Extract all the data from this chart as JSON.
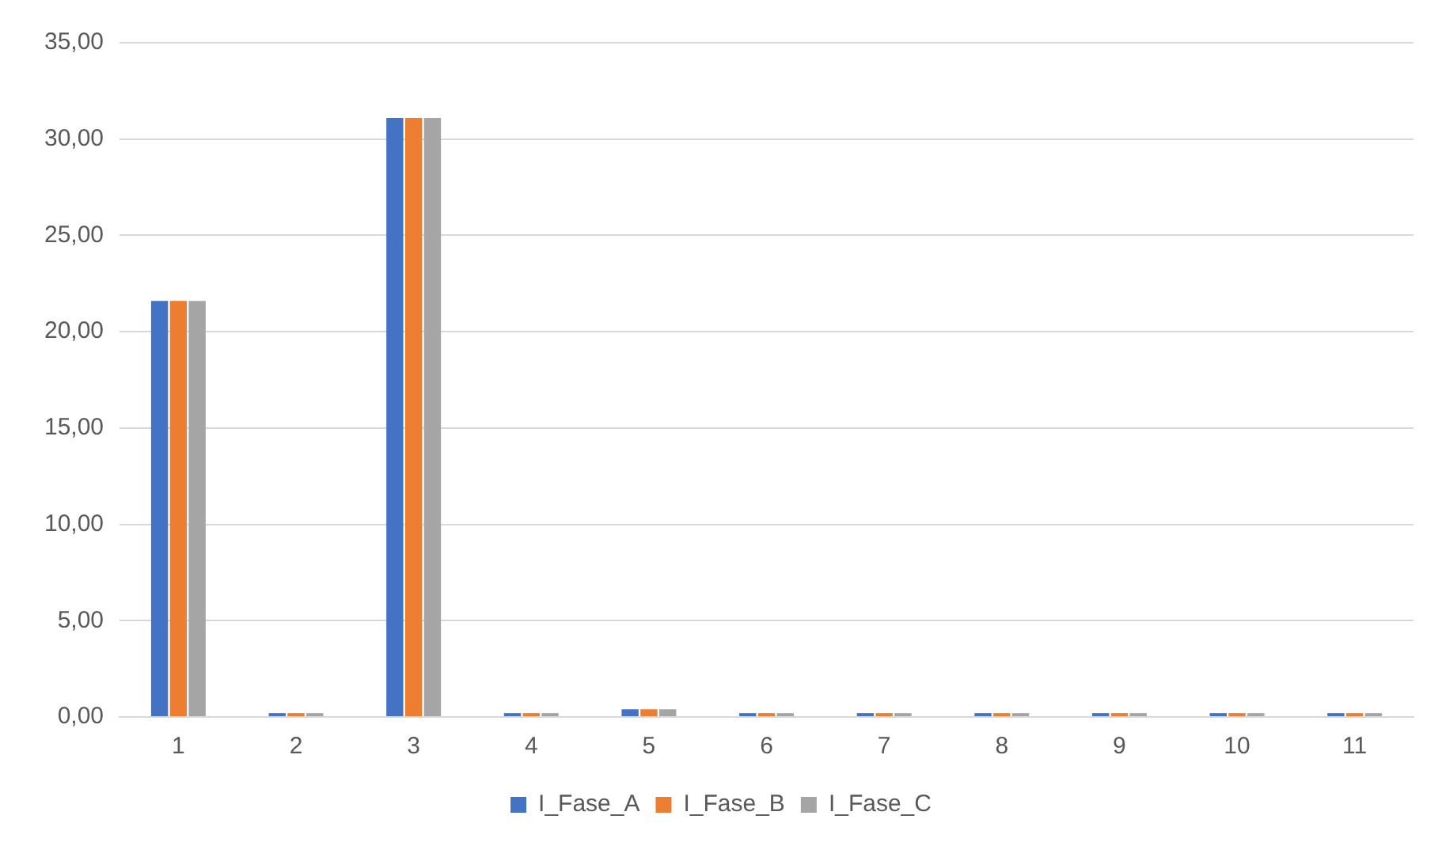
{
  "chart_data": {
    "type": "bar",
    "categories": [
      "1",
      "2",
      "3",
      "4",
      "5",
      "6",
      "7",
      "8",
      "9",
      "10",
      "11"
    ],
    "series": [
      {
        "name": "I_Fase_A",
        "color": "#4472c4",
        "values": [
          21.6,
          0.2,
          31.1,
          0.2,
          0.4,
          0.2,
          0.2,
          0.2,
          0.2,
          0.2,
          0.2
        ]
      },
      {
        "name": "I_Fase_B",
        "color": "#ed7d31",
        "values": [
          21.6,
          0.2,
          31.1,
          0.2,
          0.4,
          0.2,
          0.2,
          0.2,
          0.2,
          0.2,
          0.2
        ]
      },
      {
        "name": "I_Fase_C",
        "color": "#a5a5a5",
        "values": [
          21.6,
          0.2,
          31.1,
          0.2,
          0.4,
          0.2,
          0.2,
          0.2,
          0.2,
          0.2,
          0.2
        ]
      }
    ],
    "ylim": [
      0,
      35
    ],
    "yticks": [
      {
        "value": 0,
        "label": "0,00"
      },
      {
        "value": 5,
        "label": "5,00"
      },
      {
        "value": 10,
        "label": "10,00"
      },
      {
        "value": 15,
        "label": "15,00"
      },
      {
        "value": 20,
        "label": "20,00"
      },
      {
        "value": 25,
        "label": "25,00"
      },
      {
        "value": 30,
        "label": "30,00"
      },
      {
        "value": 35,
        "label": "35,00"
      }
    ],
    "grid": "y",
    "legend": "bottom"
  }
}
